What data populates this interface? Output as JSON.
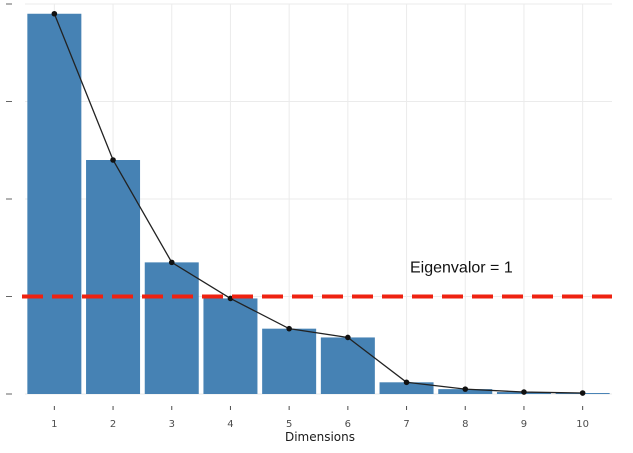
{
  "chart_data": {
    "type": "bar",
    "xlabel": "Dimensions",
    "ylabel": "",
    "categories": [
      "1",
      "2",
      "3",
      "4",
      "5",
      "6",
      "7",
      "8",
      "9",
      "10"
    ],
    "values": [
      3.9,
      2.4,
      1.35,
      0.98,
      0.67,
      0.58,
      0.12,
      0.05,
      0.02,
      0.01
    ],
    "ylim": [
      0,
      4.0
    ],
    "y_ticks": [
      0,
      1,
      2,
      3,
      4
    ],
    "grid": true,
    "legend": "none",
    "line_overlay": true,
    "reference_line": {
      "value": 1,
      "label": "Eigenvalor = 1",
      "color": "#ee2211",
      "style": "dashed"
    },
    "colors": {
      "bar": "#4682b4",
      "line": "#222222",
      "grid": "#ebebeb"
    }
  }
}
